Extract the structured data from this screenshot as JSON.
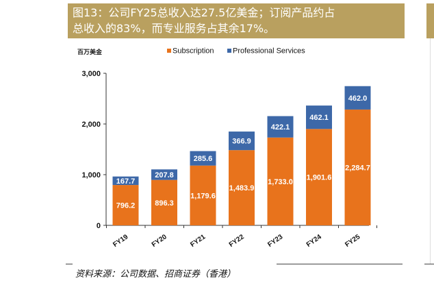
{
  "header": {
    "title_line1": "图13：公司FY25总收入达27.5亿美金；订阅产品约占",
    "title_line2": "总收入的83%，而专业服务占其余17%。"
  },
  "unit_label": "百万美金",
  "source": "资料来源：公司数据、招商证券（香港）",
  "colors": {
    "subscription": "#e8731c",
    "professional_services": "#3d68a8",
    "title_bg": "#b9a05f"
  },
  "chart_data": {
    "type": "bar",
    "stacked": true,
    "categories": [
      "FY19",
      "FY20",
      "FY21",
      "FY22",
      "FY23",
      "FY24",
      "FY25"
    ],
    "series": [
      {
        "name": "Subscription",
        "values": [
          796.2,
          896.3,
          1179.6,
          1483.9,
          1733.0,
          1901.6,
          2284.7
        ],
        "labels": [
          "796.2",
          "896.3",
          "1,179.6",
          "1,483.9",
          "1,733.0",
          "1,901.6",
          "2,284.7"
        ]
      },
      {
        "name": "Professional Services",
        "values": [
          167.7,
          207.8,
          285.6,
          366.9,
          422.1,
          462.1,
          462.0
        ],
        "labels": [
          "167.7",
          "207.8",
          "285.6",
          "366.9",
          "422.1",
          "462.1",
          "462.0"
        ]
      }
    ],
    "ylim": [
      0,
      3000
    ],
    "yticks": [
      0,
      1000,
      2000,
      3000
    ],
    "ytick_labels": [
      "0",
      "1,000",
      "2,000",
      "3,000"
    ],
    "grid": false,
    "legend": "top-center"
  }
}
